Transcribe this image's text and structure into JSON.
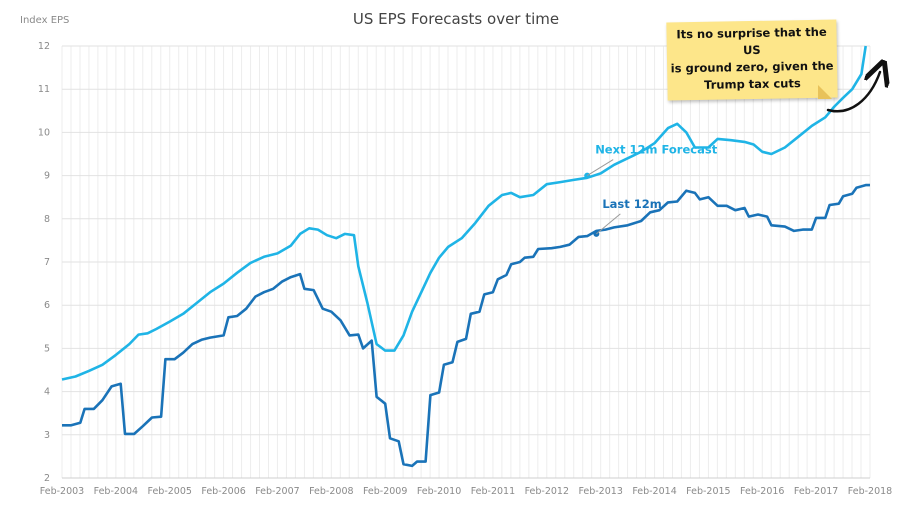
{
  "chart_data": {
    "type": "line",
    "title": "US EPS Forecasts over time",
    "ylabel": "Index EPS",
    "xlabel": "",
    "ylim": [
      2,
      12
    ],
    "yticks": [
      2,
      3,
      4,
      5,
      6,
      7,
      8,
      9,
      10,
      11,
      12
    ],
    "xlim": [
      2003.08,
      2018.08
    ],
    "xtick_labels": [
      "Feb-2003",
      "Feb-2004",
      "Feb-2005",
      "Feb-2006",
      "Feb-2007",
      "Feb-2008",
      "Feb-2009",
      "Feb-2010",
      "Feb-2011",
      "Feb-2012",
      "Feb-2013",
      "Feb-2014",
      "Feb-2015",
      "Feb-2016",
      "Feb-2017",
      "Feb-2018"
    ],
    "grid": true,
    "series": [
      {
        "name": "Next 12m Forecast",
        "color": "#1fb4e6",
        "points": [
          [
            2003.08,
            4.28
          ],
          [
            2003.33,
            4.35
          ],
          [
            2003.58,
            4.48
          ],
          [
            2003.83,
            4.62
          ],
          [
            2004.08,
            4.85
          ],
          [
            2004.33,
            5.1
          ],
          [
            2004.5,
            5.32
          ],
          [
            2004.67,
            5.35
          ],
          [
            2004.83,
            5.45
          ],
          [
            2005.08,
            5.62
          ],
          [
            2005.33,
            5.8
          ],
          [
            2005.58,
            6.05
          ],
          [
            2005.83,
            6.3
          ],
          [
            2006.08,
            6.5
          ],
          [
            2006.33,
            6.75
          ],
          [
            2006.58,
            6.98
          ],
          [
            2006.83,
            7.12
          ],
          [
            2007.08,
            7.2
          ],
          [
            2007.33,
            7.38
          ],
          [
            2007.5,
            7.65
          ],
          [
            2007.67,
            7.78
          ],
          [
            2007.83,
            7.75
          ],
          [
            2008.0,
            7.62
          ],
          [
            2008.17,
            7.55
          ],
          [
            2008.33,
            7.65
          ],
          [
            2008.5,
            7.62
          ],
          [
            2008.58,
            6.9
          ],
          [
            2008.75,
            6.05
          ],
          [
            2008.92,
            5.1
          ],
          [
            2009.08,
            4.95
          ],
          [
            2009.25,
            4.95
          ],
          [
            2009.42,
            5.3
          ],
          [
            2009.58,
            5.85
          ],
          [
            2009.75,
            6.3
          ],
          [
            2009.92,
            6.75
          ],
          [
            2010.08,
            7.1
          ],
          [
            2010.25,
            7.35
          ],
          [
            2010.5,
            7.55
          ],
          [
            2010.75,
            7.9
          ],
          [
            2011.0,
            8.3
          ],
          [
            2011.25,
            8.55
          ],
          [
            2011.42,
            8.6
          ],
          [
            2011.58,
            8.5
          ],
          [
            2011.83,
            8.55
          ],
          [
            2012.08,
            8.8
          ],
          [
            2012.33,
            8.85
          ],
          [
            2012.58,
            8.9
          ],
          [
            2012.83,
            8.95
          ],
          [
            2013.08,
            9.05
          ],
          [
            2013.33,
            9.25
          ],
          [
            2013.58,
            9.4
          ],
          [
            2013.83,
            9.55
          ],
          [
            2014.08,
            9.75
          ],
          [
            2014.33,
            10.1
          ],
          [
            2014.5,
            10.2
          ],
          [
            2014.67,
            10.0
          ],
          [
            2014.83,
            9.65
          ],
          [
            2015.08,
            9.65
          ],
          [
            2015.25,
            9.85
          ],
          [
            2015.5,
            9.82
          ],
          [
            2015.75,
            9.78
          ],
          [
            2015.92,
            9.72
          ],
          [
            2016.08,
            9.55
          ],
          [
            2016.25,
            9.5
          ],
          [
            2016.5,
            9.65
          ],
          [
            2016.75,
            9.9
          ],
          [
            2017.0,
            10.15
          ],
          [
            2017.25,
            10.35
          ],
          [
            2017.42,
            10.6
          ],
          [
            2017.58,
            10.8
          ],
          [
            2017.75,
            11.0
          ],
          [
            2017.92,
            11.35
          ],
          [
            2018.0,
            12.0
          ]
        ]
      },
      {
        "name": "Last 12m",
        "color": "#1a73b8",
        "points": [
          [
            2003.08,
            3.22
          ],
          [
            2003.25,
            3.22
          ],
          [
            2003.42,
            3.28
          ],
          [
            2003.5,
            3.6
          ],
          [
            2003.67,
            3.6
          ],
          [
            2003.83,
            3.8
          ],
          [
            2004.0,
            4.12
          ],
          [
            2004.17,
            4.18
          ],
          [
            2004.25,
            3.02
          ],
          [
            2004.42,
            3.02
          ],
          [
            2004.58,
            3.2
          ],
          [
            2004.75,
            3.4
          ],
          [
            2004.92,
            3.42
          ],
          [
            2005.0,
            4.75
          ],
          [
            2005.17,
            4.75
          ],
          [
            2005.33,
            4.9
          ],
          [
            2005.5,
            5.1
          ],
          [
            2005.67,
            5.2
          ],
          [
            2005.83,
            5.25
          ],
          [
            2006.08,
            5.3
          ],
          [
            2006.17,
            5.72
          ],
          [
            2006.33,
            5.75
          ],
          [
            2006.5,
            5.92
          ],
          [
            2006.67,
            6.2
          ],
          [
            2006.83,
            6.3
          ],
          [
            2007.0,
            6.38
          ],
          [
            2007.17,
            6.55
          ],
          [
            2007.33,
            6.65
          ],
          [
            2007.5,
            6.72
          ],
          [
            2007.58,
            6.38
          ],
          [
            2007.75,
            6.35
          ],
          [
            2007.92,
            5.92
          ],
          [
            2008.08,
            5.85
          ],
          [
            2008.25,
            5.65
          ],
          [
            2008.42,
            5.3
          ],
          [
            2008.58,
            5.32
          ],
          [
            2008.67,
            5.0
          ],
          [
            2008.83,
            5.18
          ],
          [
            2008.92,
            3.88
          ],
          [
            2009.08,
            3.72
          ],
          [
            2009.17,
            2.92
          ],
          [
            2009.33,
            2.85
          ],
          [
            2009.42,
            2.32
          ],
          [
            2009.58,
            2.28
          ],
          [
            2009.67,
            2.38
          ],
          [
            2009.83,
            2.38
          ],
          [
            2009.92,
            3.92
          ],
          [
            2010.08,
            3.98
          ],
          [
            2010.17,
            4.62
          ],
          [
            2010.33,
            4.68
          ],
          [
            2010.42,
            5.15
          ],
          [
            2010.58,
            5.22
          ],
          [
            2010.67,
            5.8
          ],
          [
            2010.83,
            5.85
          ],
          [
            2010.92,
            6.25
          ],
          [
            2011.08,
            6.3
          ],
          [
            2011.17,
            6.6
          ],
          [
            2011.33,
            6.7
          ],
          [
            2011.42,
            6.95
          ],
          [
            2011.58,
            7.0
          ],
          [
            2011.67,
            7.1
          ],
          [
            2011.83,
            7.12
          ],
          [
            2011.92,
            7.3
          ],
          [
            2012.17,
            7.32
          ],
          [
            2012.33,
            7.35
          ],
          [
            2012.5,
            7.4
          ],
          [
            2012.67,
            7.58
          ],
          [
            2012.83,
            7.6
          ],
          [
            2013.0,
            7.72
          ],
          [
            2013.17,
            7.75
          ],
          [
            2013.33,
            7.8
          ],
          [
            2013.58,
            7.85
          ],
          [
            2013.83,
            7.95
          ],
          [
            2014.0,
            8.15
          ],
          [
            2014.17,
            8.2
          ],
          [
            2014.33,
            8.38
          ],
          [
            2014.5,
            8.4
          ],
          [
            2014.67,
            8.65
          ],
          [
            2014.83,
            8.6
          ],
          [
            2014.92,
            8.45
          ],
          [
            2015.08,
            8.5
          ],
          [
            2015.25,
            8.3
          ],
          [
            2015.42,
            8.3
          ],
          [
            2015.58,
            8.2
          ],
          [
            2015.75,
            8.25
          ],
          [
            2015.83,
            8.05
          ],
          [
            2016.0,
            8.1
          ],
          [
            2016.17,
            8.05
          ],
          [
            2016.25,
            7.85
          ],
          [
            2016.5,
            7.82
          ],
          [
            2016.67,
            7.72
          ],
          [
            2016.83,
            7.75
          ],
          [
            2017.0,
            7.75
          ],
          [
            2017.08,
            8.02
          ],
          [
            2017.25,
            8.02
          ],
          [
            2017.33,
            8.32
          ],
          [
            2017.5,
            8.35
          ],
          [
            2017.58,
            8.52
          ],
          [
            2017.75,
            8.58
          ],
          [
            2017.83,
            8.72
          ],
          [
            2018.0,
            8.78
          ],
          [
            2018.08,
            8.78
          ]
        ]
      }
    ],
    "annotations": [
      {
        "text": "Next 12m Forecast",
        "series": "Next 12m Forecast",
        "at_x": 2012.83,
        "at_y": 9.0
      },
      {
        "text": "Last 12m",
        "series": "Last 12m",
        "at_x": 2013.0,
        "at_y": 7.65
      },
      {
        "text": "Its no surprise that the US is ground zero, given the Trump tax cuts",
        "style": "sticky-note"
      }
    ]
  },
  "note": {
    "line1": "Its no surprise that the US",
    "line2": "is ground zero, given the",
    "line3": "Trump tax cuts"
  }
}
